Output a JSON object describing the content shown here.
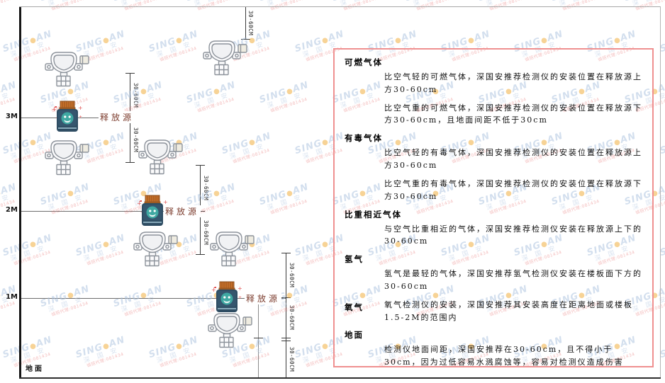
{
  "diagram": {
    "axis": {
      "m3": "3M",
      "m2": "2M",
      "m1": "1M",
      "ground": "地面"
    },
    "release_source_label": "释放源",
    "dim_label": "30-60CM"
  },
  "panel": {
    "sections": [
      {
        "heading": "可燃气体",
        "paragraphs": [
          "比空气轻的可燃气体，深国安推荐检测仪的安装位置在释放源上方30-60cm",
          "比空气重的可燃气体，深国安推荐检测仪的安装位置在释放源下方30-60cm，且地面间距不低于30cm"
        ]
      },
      {
        "heading": "有毒气体",
        "paragraphs": [
          "比空气轻的有毒气体，深国安推荐检测仪的安装位置在释放源上方30-60cm",
          "比空气重的有毒气体，深国安推荐检测仪的安装位置在释放源下方30-60cm"
        ]
      },
      {
        "heading": "比重相近气体",
        "paragraphs": [
          "与空气比重相近的气体，深国安推荐检测仪安装在释放源上下的30-60cm"
        ]
      },
      {
        "heading": "氢气",
        "paragraphs": [
          "氢气是最轻的气体，深国安推荐氢气检测仪安装在楼板面下方的30-60cm"
        ]
      },
      {
        "heading": "氧气",
        "paragraphs": [
          "氧气检测仪的安装，深国安推荐其安装高度在距离地面或楼板1.5-2M的范围内"
        ]
      },
      {
        "heading": "地面",
        "paragraphs": [
          "检测仪地面间距，深国安推荐在30-60cm，且不得小于30cm，因为过低容易水溅腐蚀等，容易对检测仪造成伤害"
        ]
      }
    ]
  },
  "watermark": {
    "line1a": "SING",
    "dot": "●",
    "line1b": "AN",
    "line2": "深 国 安",
    "line3": "诚招代理:081434"
  },
  "colors": {
    "panel_border": "#ef9090",
    "watermark_blue": "#a9c1de",
    "watermark_dot": "#f0a830",
    "release_cap": "#c9722b",
    "release_body": "#2f4d63",
    "release_circle": "#3fa8a2",
    "label_maroon": "#7b3b2c"
  }
}
